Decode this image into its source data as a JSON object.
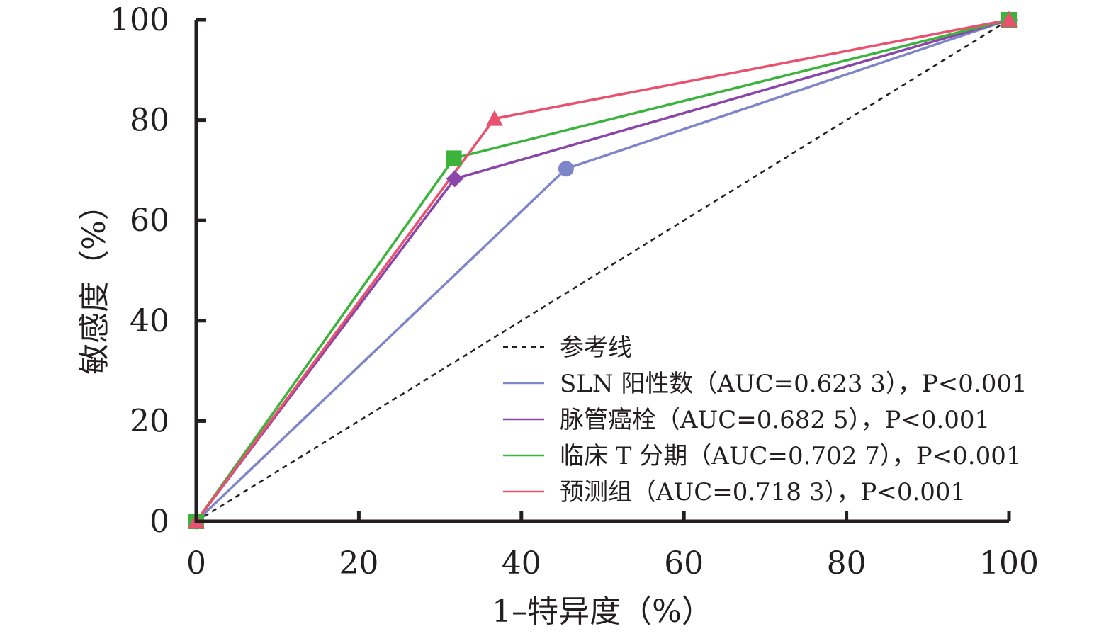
{
  "chart_data": {
    "type": "line",
    "xlabel": "1–特异度（%）",
    "ylabel": "敏感度（%）",
    "xlim": [
      0,
      100
    ],
    "ylim": [
      0,
      100
    ],
    "xticks": [
      0,
      20,
      40,
      60,
      80,
      100
    ],
    "yticks": [
      0,
      20,
      40,
      60,
      80,
      100
    ],
    "grid": false,
    "legend_position": "bottom-right",
    "reference_line": {
      "label": "参考线",
      "points": [
        [
          0,
          0
        ],
        [
          100,
          100
        ]
      ],
      "color": "#231f20",
      "style": "dashed"
    },
    "series": [
      {
        "name": "SLN 阳性数（AUC=0.623 3），P<0.001",
        "color": "#7f86c8",
        "marker": "circle",
        "points": [
          [
            0,
            0
          ],
          [
            45.5,
            70.3
          ],
          [
            100,
            100
          ]
        ]
      },
      {
        "name": "脉管癌栓（AUC=0.682 5），P<0.001",
        "color": "#8a45a8",
        "marker": "diamond",
        "points": [
          [
            0,
            0
          ],
          [
            31.8,
            68.3
          ],
          [
            100,
            100
          ]
        ]
      },
      {
        "name": "临床 T 分期（AUC=0.702 7），P<0.001",
        "color": "#3cb33c",
        "marker": "square",
        "points": [
          [
            0,
            0
          ],
          [
            31.7,
            72.4
          ],
          [
            100,
            100
          ]
        ]
      },
      {
        "name": "预测组（AUC=0.718 3），P<0.001",
        "color": "#e8526e",
        "marker": "triangle",
        "points": [
          [
            0,
            0
          ],
          [
            36.7,
            80.3
          ],
          [
            100,
            100
          ]
        ]
      }
    ]
  }
}
